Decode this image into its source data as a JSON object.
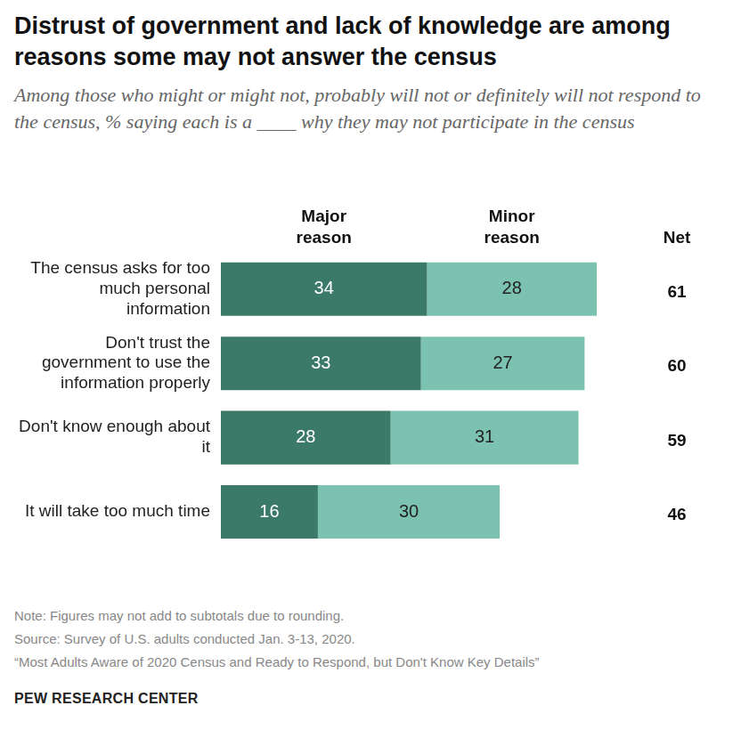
{
  "chart_data": {
    "type": "bar",
    "title": "Distrust of government and lack of knowledge are among reasons some may not answer the census",
    "subtitle": "Among those who might or might not, probably will not or definitely will not respond to the census, % saying each is a ____ why they may not participate in the census",
    "orientation": "horizontal",
    "stacked": true,
    "data_labels": true,
    "tick_labels": "y",
    "grid": false,
    "categories": [
      "The census asks for too much personal information",
      "Don't trust the government to use the information properly",
      "Don't know enough about it",
      "It will take too much time"
    ],
    "series": [
      {
        "name": "Major reason",
        "color": "#3b7a68",
        "values": [
          34,
          33,
          28,
          16
        ]
      },
      {
        "name": "Minor reason",
        "color": "#7bc2b0",
        "values": [
          28,
          27,
          31,
          30
        ]
      }
    ],
    "net": {
      "label": "Net",
      "values": [
        61,
        60,
        59,
        46
      ]
    },
    "xlim": [
      0,
      62
    ],
    "xticks": [
      0,
      62
    ],
    "note": "Note: Figures may not add to subtotals due to rounding.",
    "source": "Source: Survey of U.S. adults conducted Jan. 3-13, 2020.",
    "report": "“Most Adults Aware of 2020 Census and Ready to Respond, but Don't Know Key Details”",
    "brand": "PEW RESEARCH CENTER"
  }
}
